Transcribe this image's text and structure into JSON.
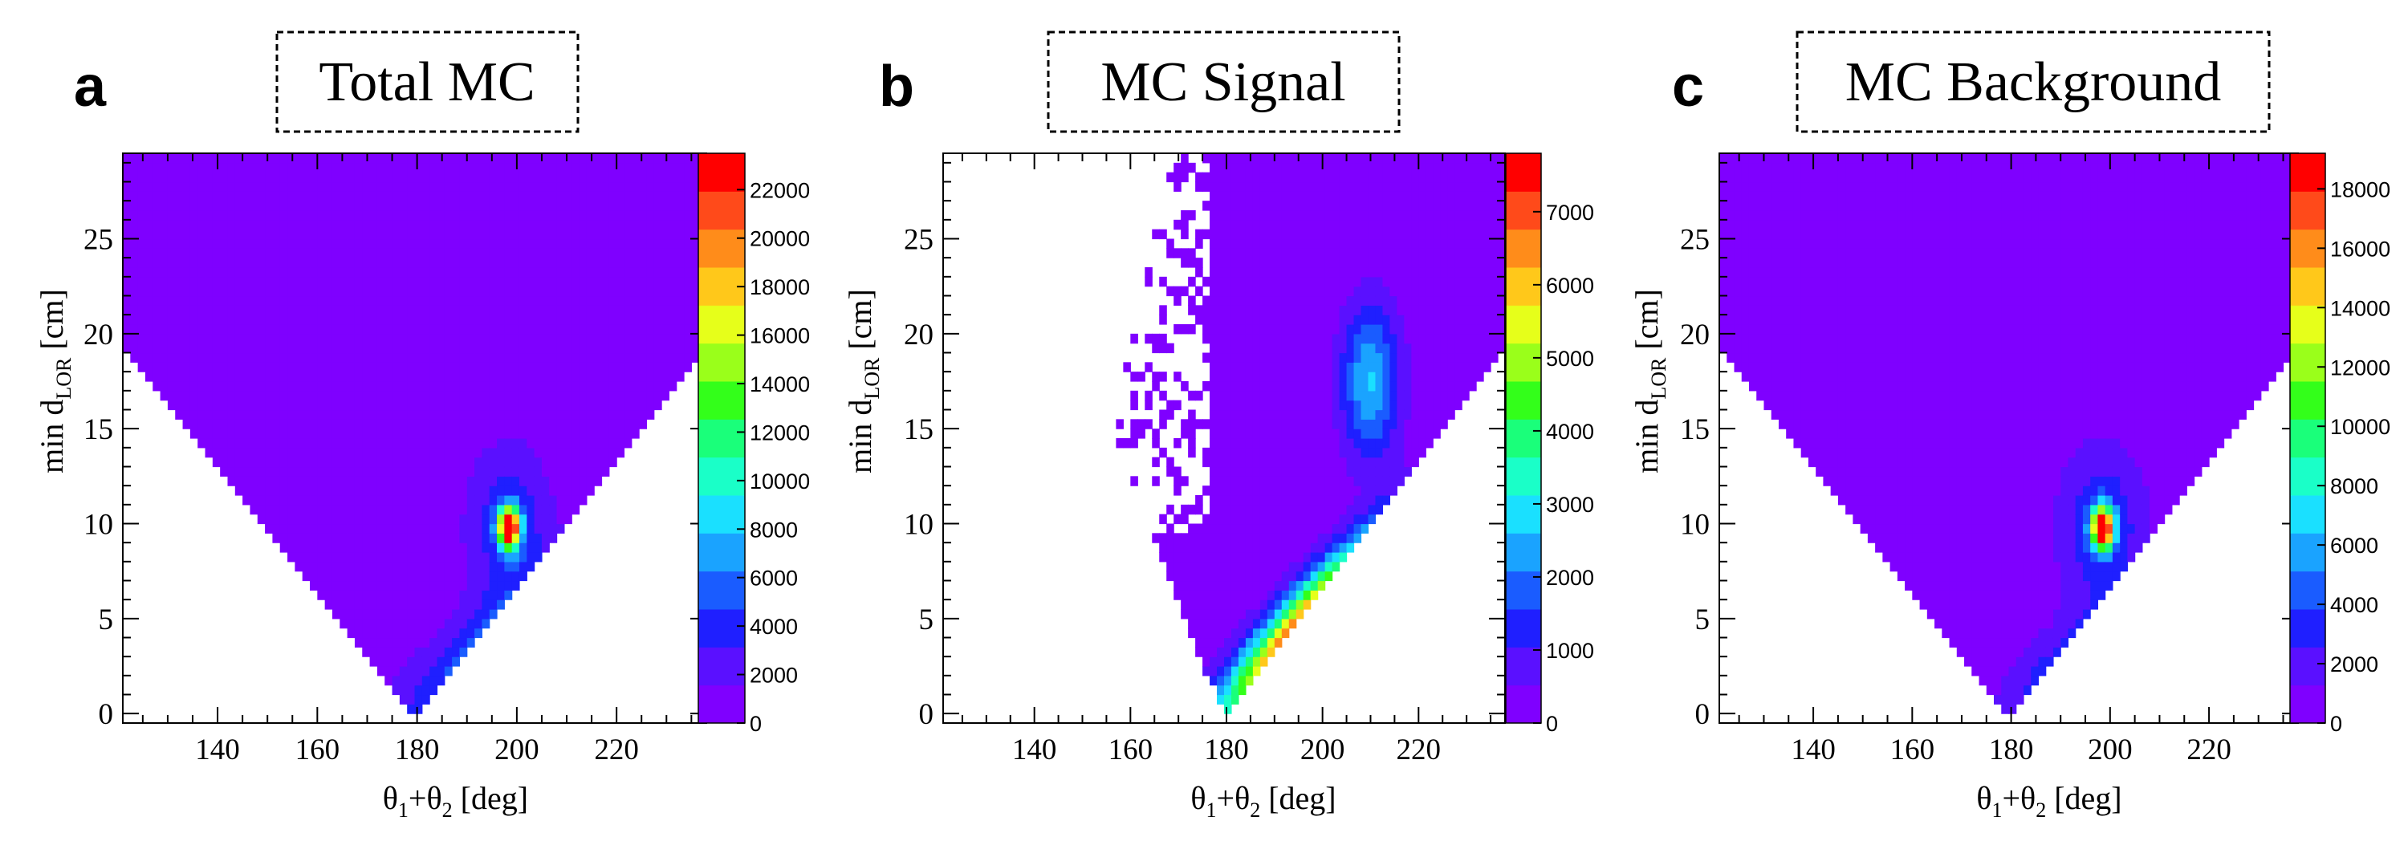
{
  "colors": {
    "palette": [
      "#7f00ff",
      "#5a10ff",
      "#1f1fff",
      "#1a5cff",
      "#1aa3ff",
      "#1ae0ff",
      "#1affc8",
      "#1aff7a",
      "#33ff1a",
      "#9aff1a",
      "#e6ff1a",
      "#ffc81a",
      "#ff8c1a",
      "#ff4a1a",
      "#ff0000"
    ],
    "background": "#ffffff",
    "frame": "#000000"
  },
  "chart_data": [
    {
      "panel_letter": "a",
      "type": "heatmap",
      "title": "Total MC",
      "xlabel": {
        "main": "θ",
        "sub1": "1",
        "plus": "+θ",
        "sub2": "2",
        "unit": " [deg]"
      },
      "ylabel": {
        "main": "min d",
        "sub": "LOR",
        "unit": " [cm]"
      },
      "xlim": [
        121,
        238
      ],
      "ylim": [
        -0.5,
        29.5
      ],
      "xticks": [
        "140",
        "160",
        "180",
        "200",
        "220"
      ],
      "xtick_values": [
        140,
        160,
        180,
        200,
        220
      ],
      "yticks": [
        "0",
        "5",
        "10",
        "15",
        "20",
        "25"
      ],
      "ytick_values": [
        0,
        5,
        10,
        15,
        20,
        25
      ],
      "z_max": 23500,
      "cbar_ticks": [
        "0",
        "2000",
        "4000",
        "6000",
        "8000",
        "10000",
        "12000",
        "14000",
        "16000",
        "18000",
        "20000",
        "22000"
      ],
      "cbar_values": [
        0,
        2000,
        4000,
        6000,
        8000,
        10000,
        12000,
        14000,
        16000,
        18000,
        20000,
        22000
      ],
      "model": {
        "region": "vee_full",
        "ridge_slope": 0.3,
        "ridge_len": 42,
        "ridge_sigma": 6.5,
        "ridge_amp": 7500,
        "peak": [
          198.5,
          9.8
        ],
        "peak_amp": 23000,
        "peak_sigma": 2.2,
        "core_amp": 4000,
        "base": 200
      }
    },
    {
      "panel_letter": "b",
      "type": "heatmap",
      "title": "MC Signal",
      "xlabel": {
        "main": "θ",
        "sub1": "1",
        "plus": "+θ",
        "sub2": "2",
        "unit": " [deg]"
      },
      "ylabel": {
        "main": "min d",
        "sub": "LOR",
        "unit": " [cm]"
      },
      "xlim": [
        121,
        238
      ],
      "ylim": [
        -0.5,
        29.5
      ],
      "xticks": [
        "140",
        "160",
        "180",
        "200",
        "220"
      ],
      "xtick_values": [
        140,
        160,
        180,
        200,
        220
      ],
      "yticks": [
        "0",
        "5",
        "10",
        "15",
        "20",
        "25"
      ],
      "ytick_values": [
        0,
        5,
        10,
        15,
        20,
        25
      ],
      "z_max": 7800,
      "cbar_ticks": [
        "0",
        "1000",
        "2000",
        "3000",
        "4000",
        "5000",
        "6000",
        "7000"
      ],
      "cbar_values": [
        0,
        1000,
        2000,
        3000,
        4000,
        5000,
        6000,
        7000
      ],
      "model": {
        "region": "signal",
        "ridge_slope": 0.5,
        "ridge_len": 38,
        "ridge_sigma": 4.5,
        "ridge_amp": 7600,
        "peak": [
          210,
          17.5
        ],
        "peak_amp": 0,
        "peak_sigma": 1,
        "core_amp": 0,
        "base": 150
      }
    },
    {
      "panel_letter": "c",
      "type": "heatmap",
      "title": "MC Background",
      "xlabel": {
        "main": "θ",
        "sub1": "1",
        "plus": "+θ",
        "sub2": "2",
        "unit": " [deg]"
      },
      "ylabel": {
        "main": "min d",
        "sub": "LOR",
        "unit": " [cm]"
      },
      "xlim": [
        121,
        238
      ],
      "ylim": [
        -0.5,
        29.5
      ],
      "xticks": [
        "140",
        "160",
        "180",
        "200",
        "220"
      ],
      "xtick_values": [
        140,
        160,
        180,
        200,
        220
      ],
      "yticks": [
        "0",
        "5",
        "10",
        "15",
        "20",
        "25"
      ],
      "ytick_values": [
        0,
        5,
        10,
        15,
        20,
        25
      ],
      "z_max": 19200,
      "cbar_ticks": [
        "0",
        "2000",
        "4000",
        "6000",
        "8000",
        "10000",
        "12000",
        "14000",
        "16000",
        "18000"
      ],
      "cbar_values": [
        0,
        2000,
        4000,
        6000,
        8000,
        10000,
        12000,
        14000,
        16000,
        18000
      ],
      "model": {
        "region": "vee_full",
        "ridge_slope": 0.28,
        "ridge_len": 30,
        "ridge_sigma": 6.0,
        "ridge_amp": 4200,
        "peak": [
          198.5,
          9.8
        ],
        "peak_amp": 19000,
        "peak_sigma": 2.2,
        "core_amp": 3500,
        "base": 200
      }
    }
  ]
}
